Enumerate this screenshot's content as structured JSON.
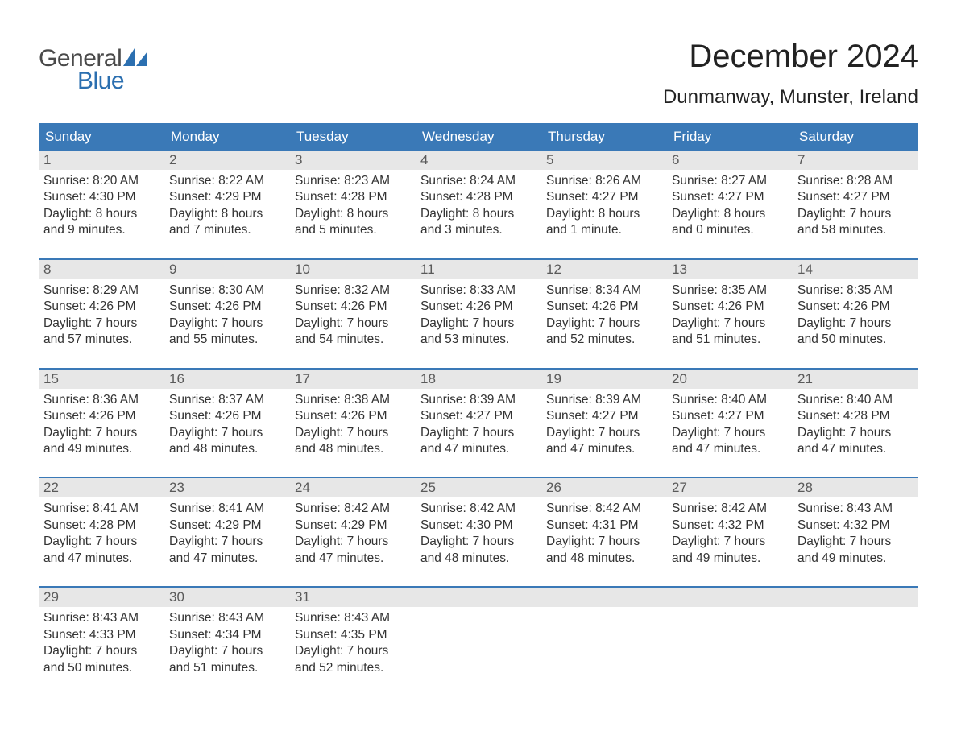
{
  "logo": {
    "text_general": "General",
    "text_blue": "Blue",
    "general_color": "#4a4a4a",
    "blue_color": "#2b6fb0",
    "sail_color": "#2b6fb0"
  },
  "title": "December 2024",
  "location": "Dunmanway, Munster, Ireland",
  "colors": {
    "header_bg": "#3a79b7",
    "header_text": "#ffffff",
    "daynum_bg": "#e7e7e7",
    "daynum_text": "#5a5a5a",
    "body_text": "#333333",
    "row_border": "#3a79b7",
    "background": "#ffffff"
  },
  "typography": {
    "title_fontsize": 40,
    "location_fontsize": 24,
    "weekday_fontsize": 17,
    "daynum_fontsize": 17,
    "detail_fontsize": 15.5,
    "font_family": "Arial"
  },
  "weekdays": [
    "Sunday",
    "Monday",
    "Tuesday",
    "Wednesday",
    "Thursday",
    "Friday",
    "Saturday"
  ],
  "weeks": [
    [
      {
        "day": "1",
        "sunrise": "Sunrise: 8:20 AM",
        "sunset": "Sunset: 4:30 PM",
        "daylight1": "Daylight: 8 hours",
        "daylight2": "and 9 minutes."
      },
      {
        "day": "2",
        "sunrise": "Sunrise: 8:22 AM",
        "sunset": "Sunset: 4:29 PM",
        "daylight1": "Daylight: 8 hours",
        "daylight2": "and 7 minutes."
      },
      {
        "day": "3",
        "sunrise": "Sunrise: 8:23 AM",
        "sunset": "Sunset: 4:28 PM",
        "daylight1": "Daylight: 8 hours",
        "daylight2": "and 5 minutes."
      },
      {
        "day": "4",
        "sunrise": "Sunrise: 8:24 AM",
        "sunset": "Sunset: 4:28 PM",
        "daylight1": "Daylight: 8 hours",
        "daylight2": "and 3 minutes."
      },
      {
        "day": "5",
        "sunrise": "Sunrise: 8:26 AM",
        "sunset": "Sunset: 4:27 PM",
        "daylight1": "Daylight: 8 hours",
        "daylight2": "and 1 minute."
      },
      {
        "day": "6",
        "sunrise": "Sunrise: 8:27 AM",
        "sunset": "Sunset: 4:27 PM",
        "daylight1": "Daylight: 8 hours",
        "daylight2": "and 0 minutes."
      },
      {
        "day": "7",
        "sunrise": "Sunrise: 8:28 AM",
        "sunset": "Sunset: 4:27 PM",
        "daylight1": "Daylight: 7 hours",
        "daylight2": "and 58 minutes."
      }
    ],
    [
      {
        "day": "8",
        "sunrise": "Sunrise: 8:29 AM",
        "sunset": "Sunset: 4:26 PM",
        "daylight1": "Daylight: 7 hours",
        "daylight2": "and 57 minutes."
      },
      {
        "day": "9",
        "sunrise": "Sunrise: 8:30 AM",
        "sunset": "Sunset: 4:26 PM",
        "daylight1": "Daylight: 7 hours",
        "daylight2": "and 55 minutes."
      },
      {
        "day": "10",
        "sunrise": "Sunrise: 8:32 AM",
        "sunset": "Sunset: 4:26 PM",
        "daylight1": "Daylight: 7 hours",
        "daylight2": "and 54 minutes."
      },
      {
        "day": "11",
        "sunrise": "Sunrise: 8:33 AM",
        "sunset": "Sunset: 4:26 PM",
        "daylight1": "Daylight: 7 hours",
        "daylight2": "and 53 minutes."
      },
      {
        "day": "12",
        "sunrise": "Sunrise: 8:34 AM",
        "sunset": "Sunset: 4:26 PM",
        "daylight1": "Daylight: 7 hours",
        "daylight2": "and 52 minutes."
      },
      {
        "day": "13",
        "sunrise": "Sunrise: 8:35 AM",
        "sunset": "Sunset: 4:26 PM",
        "daylight1": "Daylight: 7 hours",
        "daylight2": "and 51 minutes."
      },
      {
        "day": "14",
        "sunrise": "Sunrise: 8:35 AM",
        "sunset": "Sunset: 4:26 PM",
        "daylight1": "Daylight: 7 hours",
        "daylight2": "and 50 minutes."
      }
    ],
    [
      {
        "day": "15",
        "sunrise": "Sunrise: 8:36 AM",
        "sunset": "Sunset: 4:26 PM",
        "daylight1": "Daylight: 7 hours",
        "daylight2": "and 49 minutes."
      },
      {
        "day": "16",
        "sunrise": "Sunrise: 8:37 AM",
        "sunset": "Sunset: 4:26 PM",
        "daylight1": "Daylight: 7 hours",
        "daylight2": "and 48 minutes."
      },
      {
        "day": "17",
        "sunrise": "Sunrise: 8:38 AM",
        "sunset": "Sunset: 4:26 PM",
        "daylight1": "Daylight: 7 hours",
        "daylight2": "and 48 minutes."
      },
      {
        "day": "18",
        "sunrise": "Sunrise: 8:39 AM",
        "sunset": "Sunset: 4:27 PM",
        "daylight1": "Daylight: 7 hours",
        "daylight2": "and 47 minutes."
      },
      {
        "day": "19",
        "sunrise": "Sunrise: 8:39 AM",
        "sunset": "Sunset: 4:27 PM",
        "daylight1": "Daylight: 7 hours",
        "daylight2": "and 47 minutes."
      },
      {
        "day": "20",
        "sunrise": "Sunrise: 8:40 AM",
        "sunset": "Sunset: 4:27 PM",
        "daylight1": "Daylight: 7 hours",
        "daylight2": "and 47 minutes."
      },
      {
        "day": "21",
        "sunrise": "Sunrise: 8:40 AM",
        "sunset": "Sunset: 4:28 PM",
        "daylight1": "Daylight: 7 hours",
        "daylight2": "and 47 minutes."
      }
    ],
    [
      {
        "day": "22",
        "sunrise": "Sunrise: 8:41 AM",
        "sunset": "Sunset: 4:28 PM",
        "daylight1": "Daylight: 7 hours",
        "daylight2": "and 47 minutes."
      },
      {
        "day": "23",
        "sunrise": "Sunrise: 8:41 AM",
        "sunset": "Sunset: 4:29 PM",
        "daylight1": "Daylight: 7 hours",
        "daylight2": "and 47 minutes."
      },
      {
        "day": "24",
        "sunrise": "Sunrise: 8:42 AM",
        "sunset": "Sunset: 4:29 PM",
        "daylight1": "Daylight: 7 hours",
        "daylight2": "and 47 minutes."
      },
      {
        "day": "25",
        "sunrise": "Sunrise: 8:42 AM",
        "sunset": "Sunset: 4:30 PM",
        "daylight1": "Daylight: 7 hours",
        "daylight2": "and 48 minutes."
      },
      {
        "day": "26",
        "sunrise": "Sunrise: 8:42 AM",
        "sunset": "Sunset: 4:31 PM",
        "daylight1": "Daylight: 7 hours",
        "daylight2": "and 48 minutes."
      },
      {
        "day": "27",
        "sunrise": "Sunrise: 8:42 AM",
        "sunset": "Sunset: 4:32 PM",
        "daylight1": "Daylight: 7 hours",
        "daylight2": "and 49 minutes."
      },
      {
        "day": "28",
        "sunrise": "Sunrise: 8:43 AM",
        "sunset": "Sunset: 4:32 PM",
        "daylight1": "Daylight: 7 hours",
        "daylight2": "and 49 minutes."
      }
    ],
    [
      {
        "day": "29",
        "sunrise": "Sunrise: 8:43 AM",
        "sunset": "Sunset: 4:33 PM",
        "daylight1": "Daylight: 7 hours",
        "daylight2": "and 50 minutes."
      },
      {
        "day": "30",
        "sunrise": "Sunrise: 8:43 AM",
        "sunset": "Sunset: 4:34 PM",
        "daylight1": "Daylight: 7 hours",
        "daylight2": "and 51 minutes."
      },
      {
        "day": "31",
        "sunrise": "Sunrise: 8:43 AM",
        "sunset": "Sunset: 4:35 PM",
        "daylight1": "Daylight: 7 hours",
        "daylight2": "and 52 minutes."
      },
      null,
      null,
      null,
      null
    ]
  ]
}
